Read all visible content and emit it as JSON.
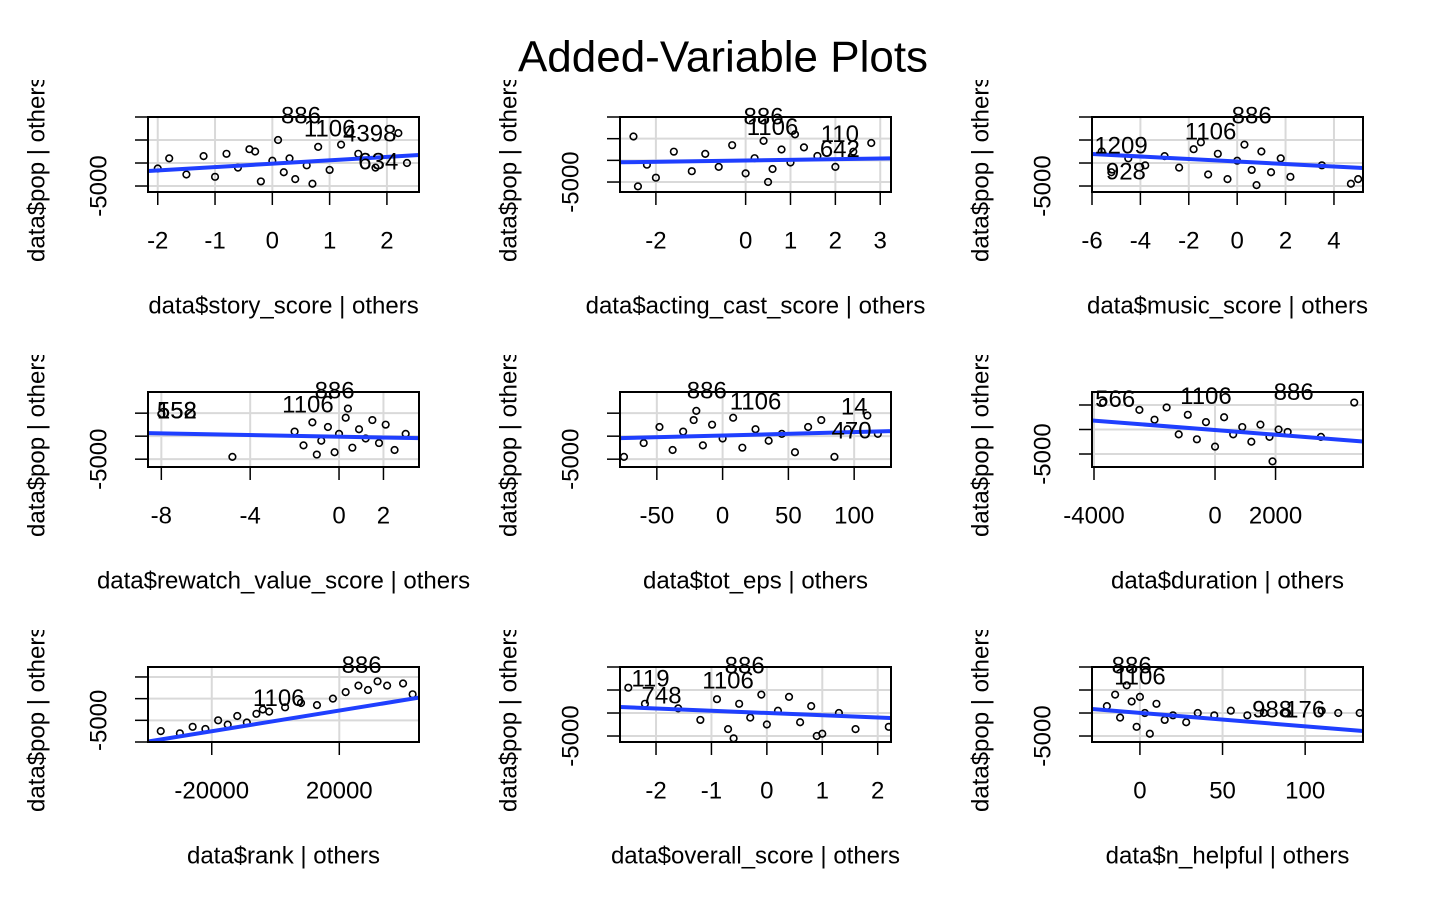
{
  "title": "Added-Variable Plots",
  "chart_data": [
    {
      "type": "scatter",
      "xlabel": "data$story_score | others",
      "ylabel": "data$pop | others",
      "color": "#000000",
      "grid": true,
      "xlim": [
        -2.17,
        2.56
      ],
      "ylim": [
        -6300,
        10000
      ],
      "xticks": [
        -2,
        -1,
        0,
        1,
        2
      ],
      "yticks": [
        -5000,
        {
          "value": 0,
          "label": null
        },
        {
          "value": 5000,
          "label": null
        },
        {
          "value": 10000,
          "label": null
        }
      ],
      "x": [
        -2,
        -1.8,
        -1.5,
        -1.2,
        -1,
        -0.8,
        -0.6,
        -0.4,
        -0.2,
        0,
        0.1,
        0.2,
        0.3,
        0.4,
        0.6,
        0.8,
        1,
        1.2,
        1.5,
        1.8,
        2.2,
        2.35,
        -0.3,
        0.7
      ],
      "values": [
        -1200,
        1000,
        -2500,
        1500,
        -3000,
        2000,
        -1000,
        3000,
        -4000,
        500,
        5000,
        -2000,
        1000,
        -3500,
        -500,
        3500,
        -1500,
        4000,
        2000,
        -1000,
        6500,
        0,
        2500,
        -4500
      ],
      "fit": {
        "x": [
          -2.17,
          2.56
        ],
        "y": [
          -1740,
          1740
        ],
        "color": "#1f3fff"
      },
      "annotations": [
        {
          "text": "886",
          "x": 0.5,
          "y": 10000
        },
        {
          "text": "1106",
          "x": 1.0,
          "y": 7170
        },
        {
          "text": "4398",
          "x": 1.7,
          "y": 6090
        },
        {
          "text": "634",
          "x": 1.85,
          "y": 0
        }
      ]
    },
    {
      "type": "scatter",
      "xlabel": "data$acting_cast_score | others",
      "ylabel": "data$pop | others",
      "color": "#000000",
      "grid": true,
      "xlim": [
        -2.8,
        3.24
      ],
      "ylim": [
        -7300,
        10000
      ],
      "xticks": [
        -2,
        0,
        1,
        2,
        3
      ],
      "yticks": [
        -5000,
        {
          "value": 0,
          "label": null
        },
        {
          "value": 5000,
          "label": null
        },
        {
          "value": 10000,
          "label": null
        }
      ],
      "x": [
        -2.5,
        -2.2,
        -2,
        -1.6,
        -1.2,
        -0.9,
        -0.6,
        -0.3,
        0,
        0.2,
        0.4,
        0.6,
        0.8,
        1,
        1.3,
        1.6,
        2,
        2.4,
        2.8,
        -2.4,
        0.5,
        1.1
      ],
      "values": [
        5500,
        -1000,
        -4000,
        2000,
        -2500,
        1500,
        -1500,
        3500,
        -3000,
        500,
        4500,
        -2000,
        2500,
        -500,
        3000,
        1000,
        -1500,
        2000,
        4000,
        -6000,
        -5000,
        6000
      ],
      "fit": {
        "x": [
          -2.8,
          3.24
        ],
        "y": [
          -450,
          450
        ],
        "color": "#1f3fff"
      },
      "annotations": [
        {
          "text": "886",
          "x": 0.4,
          "y": 9770
        },
        {
          "text": "1106",
          "x": 0.6,
          "y": 7270
        },
        {
          "text": "110",
          "x": 2.1,
          "y": 5680
        },
        {
          "text": "642",
          "x": 2.1,
          "y": 2270
        }
      ]
    },
    {
      "type": "scatter",
      "xlabel": "data$music_score | others",
      "ylabel": "data$pop | others",
      "color": "#000000",
      "grid": true,
      "xlim": [
        -6,
        5.2
      ],
      "ylim": [
        -6300,
        10000
      ],
      "xticks": [
        -6,
        -4,
        -2,
        0,
        2,
        4
      ],
      "yticks": [
        -5000,
        {
          "value": 0,
          "label": null
        },
        {
          "value": 5000,
          "label": null
        },
        {
          "value": 10000,
          "label": null
        }
      ],
      "x": [
        -5.6,
        -5.2,
        -4.5,
        -3.8,
        -3,
        -2.4,
        -1.8,
        -1.2,
        -0.8,
        -0.4,
        0,
        0.3,
        0.6,
        1,
        1.4,
        1.8,
        2.2,
        3.5,
        4.7,
        5,
        -1.5,
        0.8
      ],
      "values": [
        2500,
        -2000,
        1000,
        -500,
        1500,
        -1000,
        3000,
        -2500,
        2000,
        -3500,
        500,
        4000,
        -1500,
        2500,
        -2000,
        1000,
        -3000,
        -500,
        -4500,
        -3500,
        4500,
        -4800
      ],
      "fit": {
        "x": [
          -6,
          5.2
        ],
        "y": [
          1960,
          -1090
        ],
        "color": "#1f3fff"
      },
      "annotations": [
        {
          "text": "886",
          "x": 0.6,
          "y": 10000
        },
        {
          "text": "1106",
          "x": -1.1,
          "y": 6520
        },
        {
          "text": "1209",
          "x": -4.8,
          "y": 3480
        },
        {
          "text": "928",
          "x": -4.6,
          "y": -2170
        }
      ]
    },
    {
      "type": "scatter",
      "xlabel": "data$rewatch_value_score | others",
      "ylabel": "data$pop | others",
      "color": "#000000",
      "grid": true,
      "xlim": [
        -8.6,
        3.6
      ],
      "ylim": [
        -6700,
        9600
      ],
      "xticks": [
        -8,
        -4,
        0,
        2
      ],
      "yticks": [
        -5000,
        {
          "value": 0,
          "label": null
        },
        {
          "value": 5000,
          "label": null
        }
      ],
      "x": [
        -8,
        -4.8,
        -2,
        -1.6,
        -1.2,
        -0.8,
        -0.5,
        -0.2,
        0,
        0.3,
        0.6,
        0.9,
        1.2,
        1.5,
        1.8,
        2.1,
        2.5,
        3,
        -1,
        0.4
      ],
      "values": [
        4800,
        -4500,
        1000,
        -2000,
        3000,
        -1000,
        2000,
        -3500,
        500,
        4000,
        -2500,
        1500,
        -500,
        3500,
        -1500,
        2500,
        -3000,
        500,
        -4000,
        6000
      ],
      "fit": {
        "x": [
          -8.6,
          3.6
        ],
        "y": [
          650,
          -435
        ],
        "color": "#1f3fff"
      },
      "annotations": [
        {
          "text": "552",
          "x": -7.3,
          "y": 5200
        },
        {
          "text": "158",
          "x": -7.3,
          "y": 5200
        },
        {
          "text": "1106",
          "x": -1.4,
          "y": 6520
        },
        {
          "text": "886",
          "x": -0.2,
          "y": 9570
        }
      ]
    },
    {
      "type": "scatter",
      "xlabel": "data$tot_eps | others",
      "ylabel": "data$pop | others",
      "color": "#000000",
      "grid": true,
      "xlim": [
        -78,
        128
      ],
      "ylim": [
        -6700,
        9600
      ],
      "xticks": [
        -50,
        0,
        50,
        100
      ],
      "yticks": [
        -5000,
        {
          "value": 0,
          "label": null
        },
        {
          "value": 5000,
          "label": null
        }
      ],
      "x": [
        -75,
        -60,
        -48,
        -38,
        -30,
        -22,
        -15,
        -8,
        0,
        8,
        15,
        25,
        35,
        45,
        55,
        65,
        75,
        85,
        95,
        110,
        118,
        -20
      ],
      "values": [
        -4500,
        -1500,
        2000,
        -3000,
        1000,
        3500,
        -2000,
        2500,
        -500,
        4000,
        -2500,
        1500,
        -1000,
        500,
        -3500,
        2000,
        3500,
        -4500,
        1500,
        4500,
        500,
        5500
      ],
      "fit": {
        "x": [
          -78,
          128
        ],
        "y": [
          -435,
          1090
        ],
        "color": "#1f3fff"
      },
      "annotations": [
        {
          "text": "886",
          "x": -12,
          "y": 9570
        },
        {
          "text": "1106",
          "x": 25,
          "y": 7170
        },
        {
          "text": "14",
          "x": 100,
          "y": 6090
        },
        {
          "text": "470",
          "x": 98,
          "y": 870
        }
      ]
    },
    {
      "type": "scatter",
      "xlabel": "data$duration | others",
      "ylabel": "data$pop | others",
      "color": "#000000",
      "grid": true,
      "xlim": [
        -4066,
        4890
      ],
      "ylim": [
        -7650,
        7650
      ],
      "xticks": [
        -4000,
        0,
        2000
      ],
      "yticks": [
        -5000,
        {
          "value": 0,
          "label": null
        },
        {
          "value": 5000,
          "label": null
        }
      ],
      "x": [
        -3700,
        -2500,
        -2000,
        -1600,
        -1200,
        -900,
        -600,
        -300,
        0,
        300,
        600,
        900,
        1200,
        1500,
        1800,
        2100,
        2400,
        3500,
        4600,
        1900
      ],
      "values": [
        5500,
        4000,
        2000,
        4500,
        -1000,
        3000,
        -2000,
        1500,
        -3500,
        2500,
        -1000,
        500,
        -2500,
        1000,
        -1500,
        0,
        -500,
        -1500,
        5500,
        -6500
      ],
      "fit": {
        "x": [
          -4066,
          4890
        ],
        "y": [
          1840,
          -2450
        ],
        "color": "#1f3fff"
      },
      "annotations": [
        {
          "text": "566",
          "x": -3300,
          "y": 5920
        },
        {
          "text": "1106",
          "x": -300,
          "y": 6530
        },
        {
          "text": "886",
          "x": 2600,
          "y": 7350
        }
      ]
    },
    {
      "type": "scatter",
      "xlabel": "data$rank | others",
      "ylabel": "data$pop | others",
      "color": "#000000",
      "grid": true,
      "xlim": [
        -40000,
        45000
      ],
      "ylim": [
        -10000,
        7300
      ],
      "xticks": [
        -20000,
        20000
      ],
      "yticks": [
        {
          "value": -10000,
          "label": null
        },
        -5000,
        {
          "value": 0,
          "label": null
        },
        {
          "value": 5000,
          "label": null
        }
      ],
      "x": [
        -36000,
        -30000,
        -26000,
        -22000,
        -18000,
        -15000,
        -12000,
        -9000,
        -6000,
        -2000,
        3000,
        8000,
        13000,
        18000,
        22000,
        26000,
        29000,
        32000,
        35000,
        40000,
        43000,
        -4000
      ],
      "values": [
        -7500,
        -8000,
        -6500,
        -7000,
        -5000,
        -6000,
        -4000,
        -5500,
        -3500,
        -3000,
        -2000,
        -1000,
        -1500,
        0,
        1500,
        3000,
        2000,
        4000,
        3000,
        3500,
        1000,
        -2500
      ],
      "fit": {
        "x": [
          -40000,
          45000
        ],
        "y": [
          -9900,
          230
        ],
        "color": "#1f3fff"
      },
      "annotations": [
        {
          "text": "886",
          "x": 27000,
          "y": 7370
        },
        {
          "text": "1106",
          "x": 1000,
          "y": -230
        }
      ]
    },
    {
      "type": "scatter",
      "xlabel": "data$overall_score | others",
      "ylabel": "data$pop | others",
      "color": "#000000",
      "grid": true,
      "xlim": [
        -2.65,
        2.24
      ],
      "ylim": [
        -6300,
        10000
      ],
      "xticks": [
        -2,
        -1,
        0,
        1,
        2
      ],
      "yticks": [
        -5000,
        {
          "value": 0,
          "label": null
        },
        {
          "value": 5000,
          "label": null
        },
        {
          "value": 10000,
          "label": null
        }
      ],
      "x": [
        -2.5,
        -2.2,
        -1.6,
        -1.2,
        -0.9,
        -0.7,
        -0.5,
        -0.3,
        -0.1,
        0,
        0.2,
        0.4,
        0.6,
        0.8,
        1,
        1.3,
        1.6,
        2.2,
        -0.6,
        0.9
      ],
      "values": [
        5500,
        2000,
        1000,
        -1500,
        3000,
        -3500,
        2000,
        -1000,
        4000,
        -2500,
        500,
        3500,
        -2000,
        1500,
        -4500,
        0,
        -3500,
        -3000,
        -5500,
        -5000
      ],
      "fit": {
        "x": [
          -2.65,
          2.24
        ],
        "y": [
          1300,
          -1090
        ],
        "color": "#1f3fff"
      },
      "annotations": [
        {
          "text": "119",
          "x": -2.1,
          "y": 7170
        },
        {
          "text": "748",
          "x": -1.9,
          "y": 3480
        },
        {
          "text": "1106",
          "x": -0.7,
          "y": 6740
        },
        {
          "text": "886",
          "x": -0.4,
          "y": 10000
        }
      ]
    },
    {
      "type": "scatter",
      "xlabel": "data$n_helpful | others",
      "ylabel": "data$pop | others",
      "color": "#000000",
      "grid": true,
      "xlim": [
        -29,
        135
      ],
      "ylim": [
        -6300,
        10000
      ],
      "xticks": [
        0,
        50,
        100
      ],
      "yticks": [
        -5000,
        {
          "value": 0,
          "label": null
        },
        {
          "value": 5000,
          "label": null
        },
        {
          "value": 10000,
          "label": null
        }
      ],
      "x": [
        -20,
        -15,
        -12,
        -8,
        -5,
        -2,
        0,
        3,
        6,
        10,
        15,
        20,
        28,
        35,
        45,
        55,
        65,
        75,
        88,
        110,
        120,
        133
      ],
      "values": [
        1500,
        4000,
        -1000,
        6000,
        2500,
        -3000,
        3500,
        0,
        -4500,
        2000,
        -1500,
        -500,
        -2000,
        0,
        -500,
        500,
        -500,
        0,
        0,
        500,
        0,
        0
      ],
      "fit": {
        "x": [
          -29,
          135
        ],
        "y": [
          870,
          -3910
        ],
        "color": "#1f3fff"
      },
      "annotations": [
        {
          "text": "886",
          "x": -5,
          "y": 10000
        },
        {
          "text": "1106",
          "x": 0,
          "y": 7600
        },
        {
          "text": "988",
          "x": 80,
          "y": 430
        },
        {
          "text": "176",
          "x": 100,
          "y": 430
        }
      ]
    }
  ]
}
